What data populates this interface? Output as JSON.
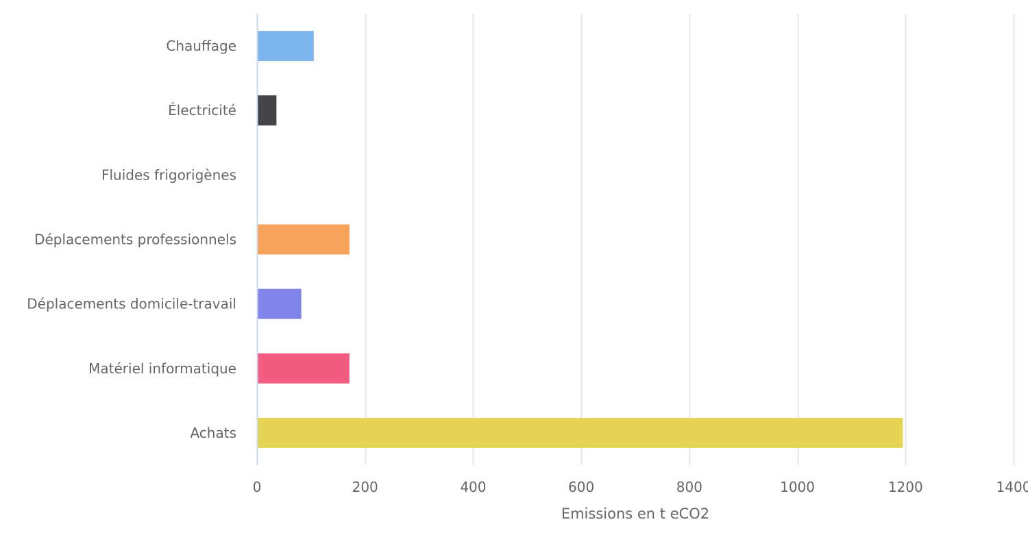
{
  "chart_data": {
    "type": "bar",
    "orientation": "horizontal",
    "categories": [
      "Chauffage",
      "Électricité",
      "Fluides frigorigènes",
      "Déplacements professionnels",
      "Déplacements domicile-travail",
      "Matériel informatique",
      "Achats"
    ],
    "values": [
      105,
      36,
      0,
      171,
      82,
      171,
      1195
    ],
    "colors": [
      "#7cb5ec",
      "#434348",
      "#90ed7d",
      "#f7a35c",
      "#8085e9",
      "#f15c80",
      "#e4d354"
    ],
    "xlabel": "Emissions en t eCO2",
    "ylabel": "",
    "xlim": [
      0,
      1400
    ],
    "ticks": [
      0,
      200,
      400,
      600,
      800,
      1000,
      1200,
      1400
    ],
    "tick_labels": [
      "0",
      "200",
      "400",
      "600",
      "800",
      "1000",
      "1200",
      "1400"
    ],
    "grid": true,
    "legend": "none"
  }
}
